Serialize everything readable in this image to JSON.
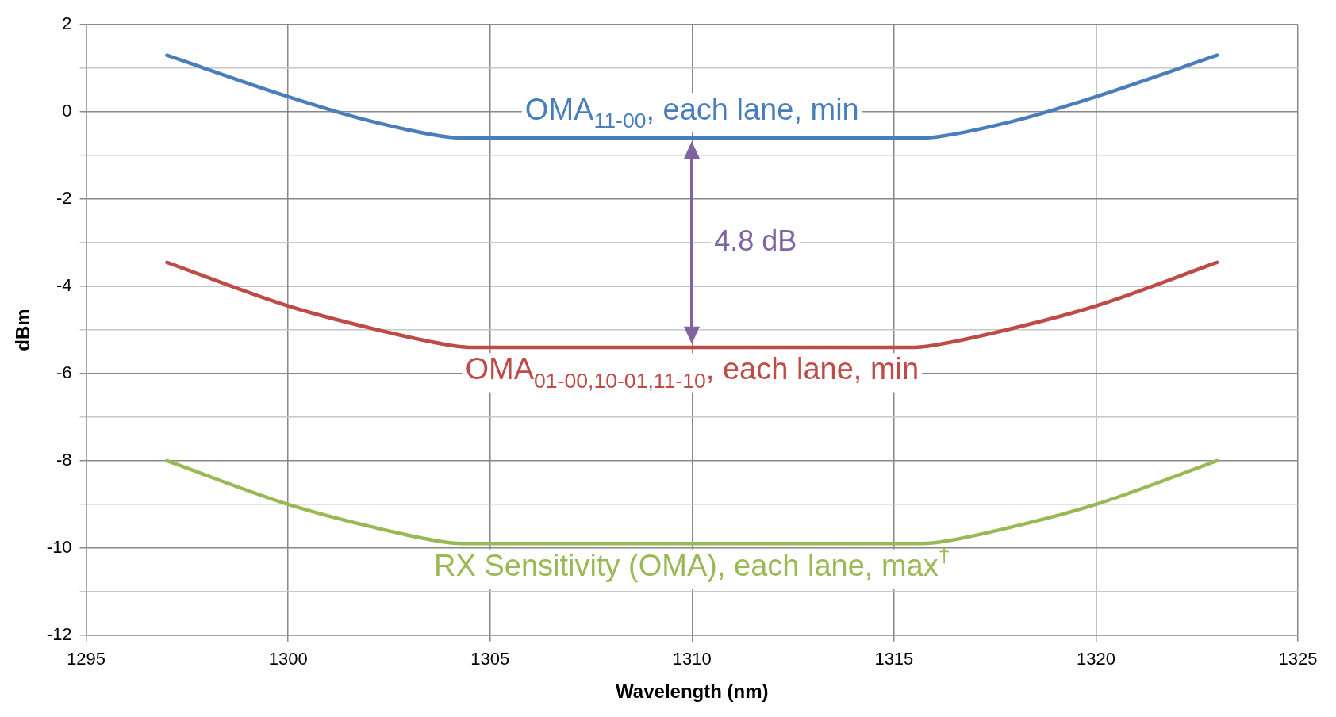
{
  "chart_data": {
    "type": "line",
    "xlabel": "Wavelength (nm)",
    "ylabel": "dBm",
    "xlim": [
      1295,
      1325
    ],
    "xticks": [
      1295,
      1300,
      1305,
      1310,
      1315,
      1320,
      1325
    ],
    "ylim": [
      -12,
      2
    ],
    "yticks": [
      -12,
      {
        "value": -11,
        "label": null
      },
      -10,
      {
        "value": -9,
        "label": null
      },
      -8,
      {
        "value": -7,
        "label": null
      },
      -6,
      {
        "value": -5,
        "label": null
      },
      -4,
      {
        "value": -3,
        "label": null
      },
      -2,
      {
        "value": -1,
        "label": null
      },
      0,
      {
        "value": 1,
        "label": null
      },
      2
    ],
    "grid": true,
    "legend": false,
    "marker": "none",
    "line_style": "solid",
    "x": [
      1297,
      1300,
      1302,
      1304,
      1304.5,
      1310,
      1315.5,
      1316,
      1318,
      1320,
      1323
    ],
    "series": [
      {
        "name": "OMA$_{11-00}$, each lane, min",
        "color": "#4a7ebb",
        "values": [
          1.3,
          0.35,
          -0.2,
          -0.58,
          -0.6,
          -0.6,
          -0.6,
          -0.58,
          -0.2,
          0.35,
          1.3
        ]
      },
      {
        "name": "OMA$_{01-00,10-01,11-10}$, each lane, min",
        "color": "#be4b48",
        "values": [
          -3.45,
          -4.45,
          -4.95,
          -5.35,
          -5.4,
          -5.4,
          -5.4,
          -5.35,
          -4.95,
          -4.45,
          -3.45
        ]
      },
      {
        "name": "RX Sensitivity (OMA), each lane, max$^{†}$",
        "color": "#98b954",
        "values": [
          -8,
          -9,
          -9.5,
          -9.88,
          -9.9,
          -9.9,
          -9.9,
          -9.88,
          -9.5,
          -9,
          -8
        ]
      }
    ],
    "annotations": [
      "4.8 dB"
    ]
  }
}
